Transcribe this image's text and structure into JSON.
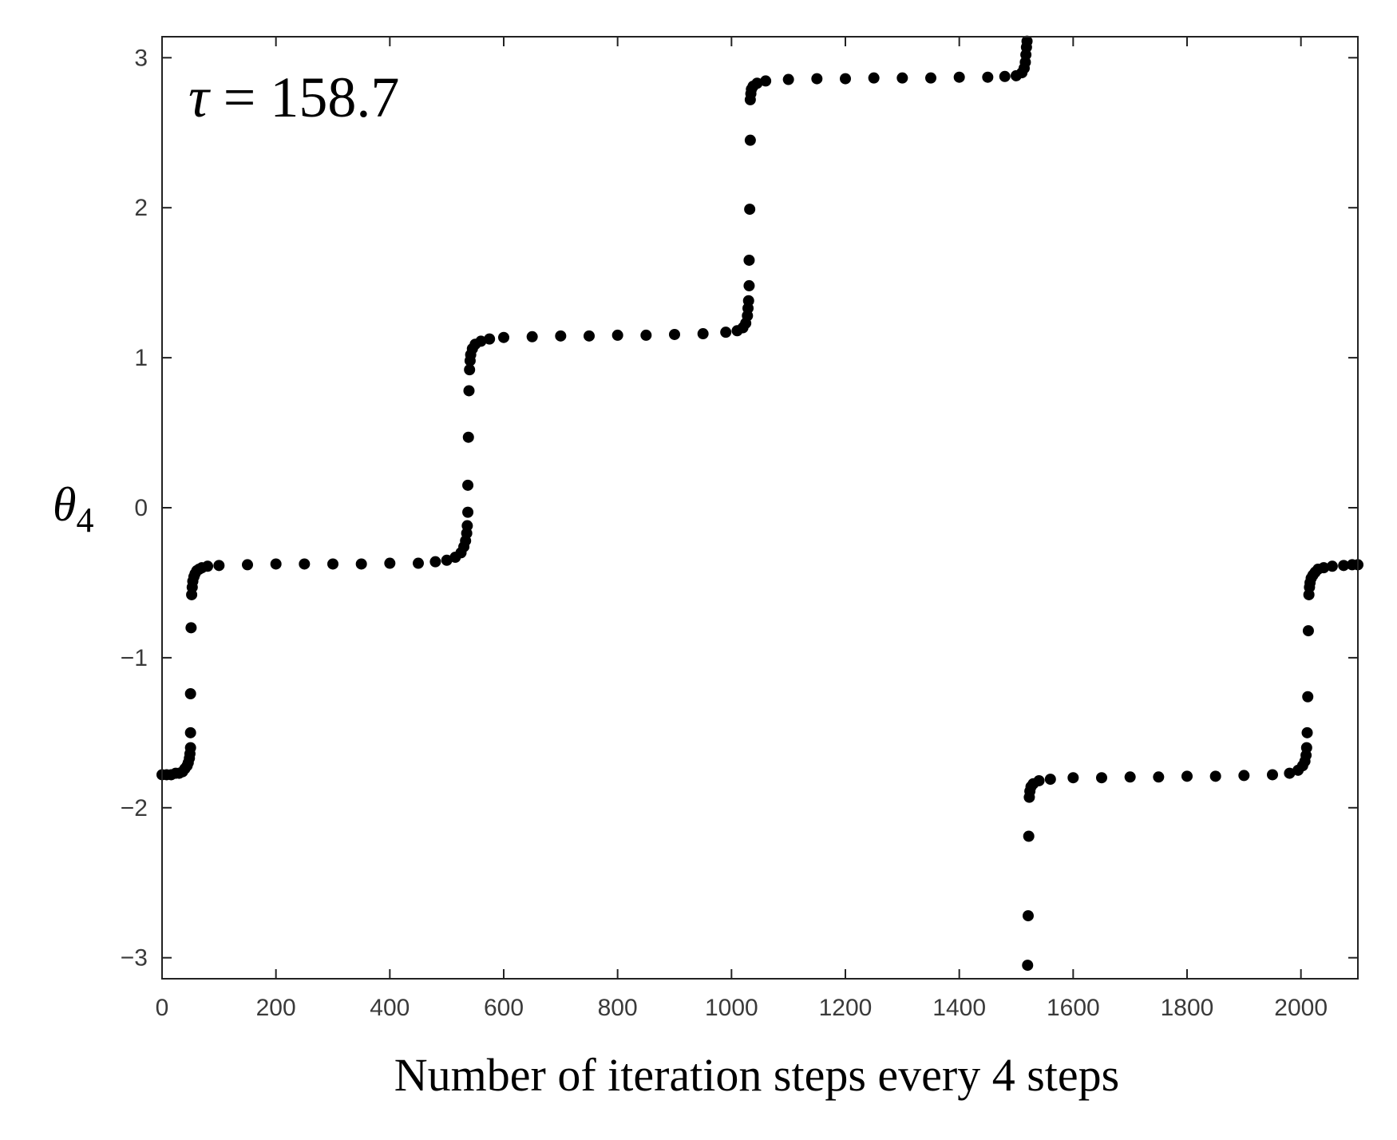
{
  "chart_data": {
    "type": "scatter",
    "xlabel": "Number of iteration steps every 4 steps",
    "ylabel": "θ",
    "ylabel_sub": "4",
    "annotation": {
      "symbol": "τ",
      "text": " = 158.7"
    },
    "xlim": [
      0,
      2100
    ],
    "ylim": [
      -3.14,
      3.14
    ],
    "xticks": [
      0,
      200,
      400,
      600,
      800,
      1000,
      1200,
      1400,
      1600,
      1800,
      2000
    ],
    "yticks": [
      -3,
      -2,
      -1,
      0,
      1,
      2,
      3
    ],
    "tick_labels_x": [
      "0",
      "200",
      "400",
      "600",
      "800",
      "1000",
      "1200",
      "1400",
      "1600",
      "1800",
      "2000"
    ],
    "tick_labels_y": [
      "−3",
      "−2",
      "−1",
      "0",
      "1",
      "2",
      "3"
    ],
    "grid": false,
    "marker_color": "#000000",
    "points": [
      {
        "x": 0,
        "y": -1.78
      },
      {
        "x": 8,
        "y": -1.78
      },
      {
        "x": 16,
        "y": -1.78
      },
      {
        "x": 24,
        "y": -1.77
      },
      {
        "x": 30,
        "y": -1.77
      },
      {
        "x": 36,
        "y": -1.76
      },
      {
        "x": 40,
        "y": -1.74
      },
      {
        "x": 44,
        "y": -1.72
      },
      {
        "x": 46,
        "y": -1.7
      },
      {
        "x": 48,
        "y": -1.67
      },
      {
        "x": 49,
        "y": -1.64
      },
      {
        "x": 50,
        "y": -1.6
      },
      {
        "x": 50,
        "y": -1.5
      },
      {
        "x": 50,
        "y": -1.24
      },
      {
        "x": 51,
        "y": -0.8
      },
      {
        "x": 52,
        "y": -0.58
      },
      {
        "x": 53,
        "y": -0.53
      },
      {
        "x": 54,
        "y": -0.49
      },
      {
        "x": 56,
        "y": -0.46
      },
      {
        "x": 58,
        "y": -0.44
      },
      {
        "x": 61,
        "y": -0.42
      },
      {
        "x": 65,
        "y": -0.41
      },
      {
        "x": 70,
        "y": -0.4
      },
      {
        "x": 80,
        "y": -0.39
      },
      {
        "x": 100,
        "y": -0.385
      },
      {
        "x": 150,
        "y": -0.38
      },
      {
        "x": 200,
        "y": -0.375
      },
      {
        "x": 250,
        "y": -0.375
      },
      {
        "x": 300,
        "y": -0.375
      },
      {
        "x": 350,
        "y": -0.375
      },
      {
        "x": 400,
        "y": -0.37
      },
      {
        "x": 450,
        "y": -0.37
      },
      {
        "x": 480,
        "y": -0.36
      },
      {
        "x": 500,
        "y": -0.35
      },
      {
        "x": 515,
        "y": -0.33
      },
      {
        "x": 525,
        "y": -0.3
      },
      {
        "x": 530,
        "y": -0.26
      },
      {
        "x": 533,
        "y": -0.22
      },
      {
        "x": 535,
        "y": -0.17
      },
      {
        "x": 536,
        "y": -0.12
      },
      {
        "x": 537,
        "y": -0.03
      },
      {
        "x": 537,
        "y": 0.15
      },
      {
        "x": 538,
        "y": 0.47
      },
      {
        "x": 539,
        "y": 0.78
      },
      {
        "x": 540,
        "y": 0.92
      },
      {
        "x": 541,
        "y": 0.98
      },
      {
        "x": 542,
        "y": 1.02
      },
      {
        "x": 545,
        "y": 1.06
      },
      {
        "x": 550,
        "y": 1.09
      },
      {
        "x": 560,
        "y": 1.11
      },
      {
        "x": 575,
        "y": 1.125
      },
      {
        "x": 600,
        "y": 1.135
      },
      {
        "x": 650,
        "y": 1.14
      },
      {
        "x": 700,
        "y": 1.145
      },
      {
        "x": 750,
        "y": 1.145
      },
      {
        "x": 800,
        "y": 1.15
      },
      {
        "x": 850,
        "y": 1.15
      },
      {
        "x": 900,
        "y": 1.155
      },
      {
        "x": 950,
        "y": 1.16
      },
      {
        "x": 990,
        "y": 1.17
      },
      {
        "x": 1010,
        "y": 1.18
      },
      {
        "x": 1020,
        "y": 1.2
      },
      {
        "x": 1025,
        "y": 1.23
      },
      {
        "x": 1028,
        "y": 1.28
      },
      {
        "x": 1029,
        "y": 1.33
      },
      {
        "x": 1030,
        "y": 1.38
      },
      {
        "x": 1031,
        "y": 1.48
      },
      {
        "x": 1031,
        "y": 1.65
      },
      {
        "x": 1032,
        "y": 1.99
      },
      {
        "x": 1033,
        "y": 2.45
      },
      {
        "x": 1033,
        "y": 2.72
      },
      {
        "x": 1034,
        "y": 2.76
      },
      {
        "x": 1035,
        "y": 2.79
      },
      {
        "x": 1038,
        "y": 2.81
      },
      {
        "x": 1045,
        "y": 2.83
      },
      {
        "x": 1060,
        "y": 2.845
      },
      {
        "x": 1100,
        "y": 2.855
      },
      {
        "x": 1150,
        "y": 2.86
      },
      {
        "x": 1200,
        "y": 2.86
      },
      {
        "x": 1250,
        "y": 2.865
      },
      {
        "x": 1300,
        "y": 2.865
      },
      {
        "x": 1350,
        "y": 2.865
      },
      {
        "x": 1400,
        "y": 2.87
      },
      {
        "x": 1450,
        "y": 2.87
      },
      {
        "x": 1480,
        "y": 2.875
      },
      {
        "x": 1500,
        "y": 2.88
      },
      {
        "x": 1510,
        "y": 2.9
      },
      {
        "x": 1514,
        "y": 2.93
      },
      {
        "x": 1516,
        "y": 2.97
      },
      {
        "x": 1517,
        "y": 3.02
      },
      {
        "x": 1518,
        "y": 3.07
      },
      {
        "x": 1519,
        "y": 3.11
      },
      {
        "x": 1520,
        "y": -3.05
      },
      {
        "x": 1521,
        "y": -2.72
      },
      {
        "x": 1522,
        "y": -2.19
      },
      {
        "x": 1523,
        "y": -1.93
      },
      {
        "x": 1524,
        "y": -1.89
      },
      {
        "x": 1526,
        "y": -1.86
      },
      {
        "x": 1530,
        "y": -1.84
      },
      {
        "x": 1540,
        "y": -1.82
      },
      {
        "x": 1560,
        "y": -1.81
      },
      {
        "x": 1600,
        "y": -1.8
      },
      {
        "x": 1650,
        "y": -1.8
      },
      {
        "x": 1700,
        "y": -1.795
      },
      {
        "x": 1750,
        "y": -1.795
      },
      {
        "x": 1800,
        "y": -1.79
      },
      {
        "x": 1850,
        "y": -1.79
      },
      {
        "x": 1900,
        "y": -1.785
      },
      {
        "x": 1950,
        "y": -1.78
      },
      {
        "x": 1980,
        "y": -1.77
      },
      {
        "x": 1995,
        "y": -1.75
      },
      {
        "x": 2003,
        "y": -1.72
      },
      {
        "x": 2007,
        "y": -1.69
      },
      {
        "x": 2009,
        "y": -1.65
      },
      {
        "x": 2010,
        "y": -1.6
      },
      {
        "x": 2011,
        "y": -1.5
      },
      {
        "x": 2012,
        "y": -1.26
      },
      {
        "x": 2013,
        "y": -0.82
      },
      {
        "x": 2014,
        "y": -0.58
      },
      {
        "x": 2015,
        "y": -0.53
      },
      {
        "x": 2016,
        "y": -0.5
      },
      {
        "x": 2018,
        "y": -0.47
      },
      {
        "x": 2021,
        "y": -0.45
      },
      {
        "x": 2025,
        "y": -0.43
      },
      {
        "x": 2030,
        "y": -0.41
      },
      {
        "x": 2040,
        "y": -0.4
      },
      {
        "x": 2055,
        "y": -0.39
      },
      {
        "x": 2075,
        "y": -0.385
      },
      {
        "x": 2090,
        "y": -0.38
      },
      {
        "x": 2100,
        "y": -0.38
      }
    ]
  }
}
